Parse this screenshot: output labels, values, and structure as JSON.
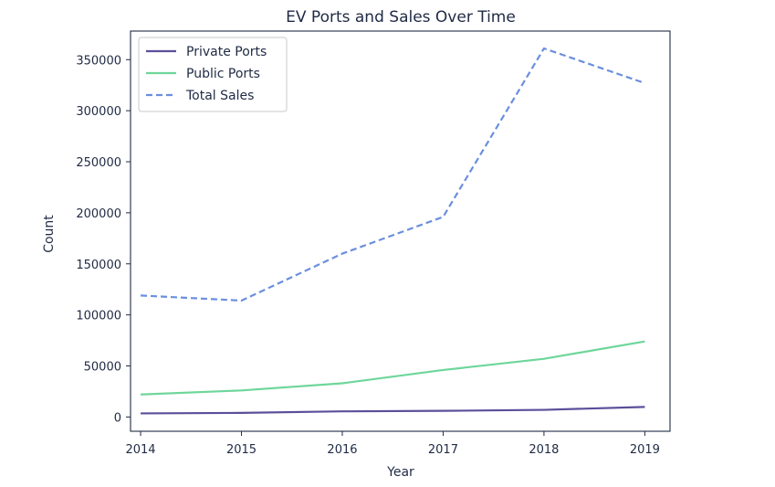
{
  "chart_data": {
    "type": "line",
    "title": "EV Ports and Sales Over Time",
    "xlabel": "Year",
    "ylabel": "Count",
    "x": [
      2014,
      2015,
      2016,
      2017,
      2018,
      2019
    ],
    "xlim": [
      2013.9,
      2019.25
    ],
    "ylim": [
      -14000,
      378000
    ],
    "yticks": [
      0,
      50000,
      100000,
      150000,
      200000,
      250000,
      300000,
      350000
    ],
    "grid": false,
    "legend_position": "top-left",
    "series": [
      {
        "name": "Private Ports",
        "values": [
          3500,
          4000,
          5500,
          6000,
          7000,
          9800
        ],
        "color": "#5b4f9a",
        "style": "solid"
      },
      {
        "name": "Public Ports",
        "values": [
          22000,
          26000,
          33000,
          46000,
          57000,
          74000
        ],
        "color": "#6ed69a",
        "style": "solid"
      },
      {
        "name": "Total Sales",
        "values": [
          119000,
          114000,
          160000,
          196000,
          361000,
          327000
        ],
        "color": "#6b8fde",
        "style": "dashed"
      }
    ]
  }
}
